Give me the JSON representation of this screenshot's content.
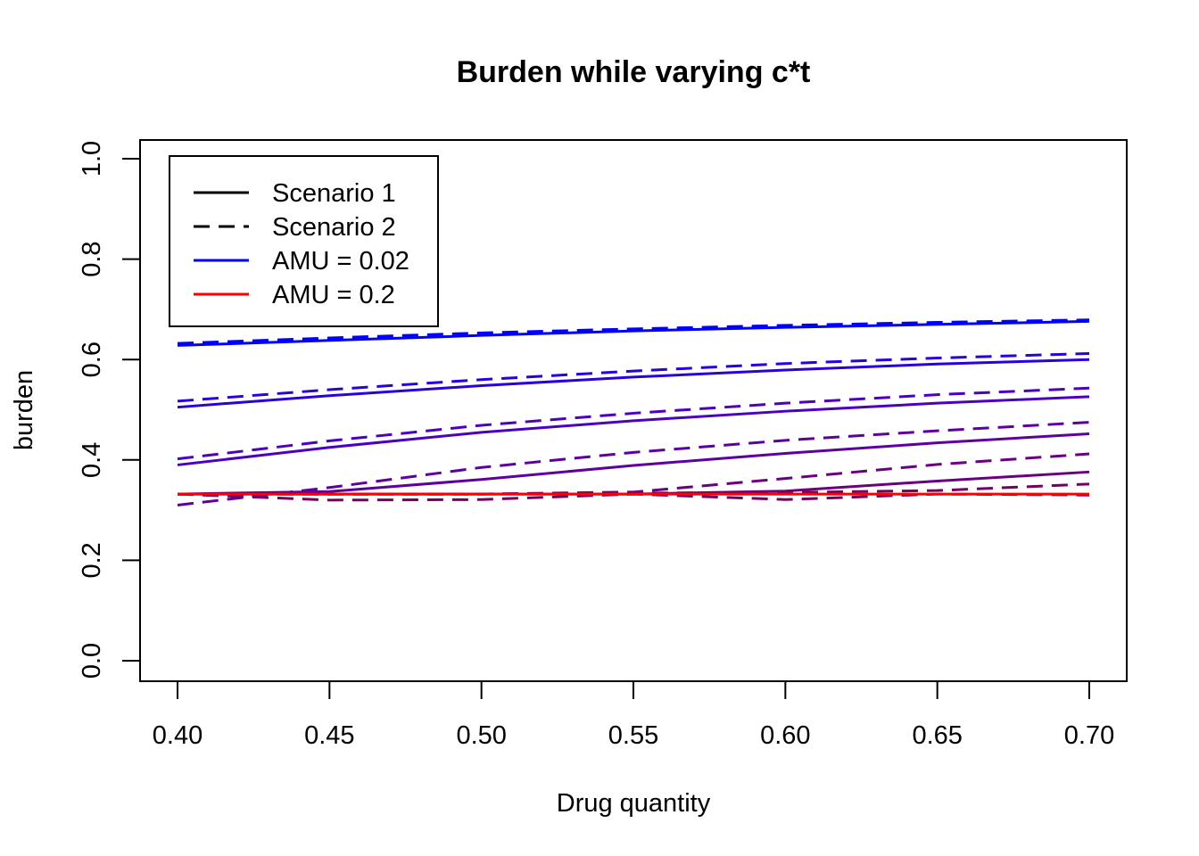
{
  "chart_data": {
    "type": "line",
    "title": "Burden while varying c*t",
    "xlabel": "Drug quantity",
    "ylabel": "burden",
    "xlim": [
      0.4,
      0.7
    ],
    "ylim": [
      0.0,
      1.0
    ],
    "x_ticks": [
      "0.40",
      "0.45",
      "0.50",
      "0.55",
      "0.60",
      "0.65",
      "0.70"
    ],
    "y_ticks": [
      "0.0",
      "0.2",
      "0.4",
      "0.6",
      "0.8",
      "1.0"
    ],
    "grid": false,
    "legend_position": "top-left",
    "legend": [
      {
        "label": "Scenario 1",
        "color": "#000000",
        "dash": "solid"
      },
      {
        "label": "Scenario 2",
        "color": "#000000",
        "dash": "dashed"
      },
      {
        "label": "AMU = 0.02",
        "color": "#0000ff",
        "dash": "solid"
      },
      {
        "label": "AMU = 0.2",
        "color": "#ff0000",
        "dash": "solid"
      }
    ],
    "x": [
      0.4,
      0.45,
      0.5,
      0.55,
      0.6,
      0.65,
      0.7
    ],
    "series": [
      {
        "color": "#0000ff",
        "dash": "solid",
        "values": [
          0.628,
          0.638,
          0.648,
          0.657,
          0.664,
          0.67,
          0.676
        ]
      },
      {
        "color": "#0000ff",
        "dash": "dashed",
        "values": [
          0.632,
          0.643,
          0.653,
          0.661,
          0.668,
          0.674,
          0.679
        ]
      },
      {
        "color": "#2a00e0",
        "dash": "solid",
        "values": [
          0.505,
          0.528,
          0.548,
          0.565,
          0.579,
          0.591,
          0.6
        ]
      },
      {
        "color": "#2a00e0",
        "dash": "dashed",
        "values": [
          0.517,
          0.54,
          0.56,
          0.577,
          0.592,
          0.603,
          0.612
        ]
      },
      {
        "color": "#4c00c0",
        "dash": "solid",
        "values": [
          0.39,
          0.425,
          0.455,
          0.478,
          0.497,
          0.513,
          0.526
        ]
      },
      {
        "color": "#4c00c0",
        "dash": "dashed",
        "values": [
          0.402,
          0.438,
          0.469,
          0.493,
          0.513,
          0.53,
          0.543
        ]
      },
      {
        "color": "#5e00a0",
        "dash": "solid",
        "values": [
          0.332,
          0.337,
          0.361,
          0.389,
          0.413,
          0.434,
          0.452
        ]
      },
      {
        "color": "#5e00a0",
        "dash": "dashed",
        "values": [
          0.31,
          0.345,
          0.385,
          0.415,
          0.439,
          0.458,
          0.475
        ]
      },
      {
        "color": "#6a0080",
        "dash": "solid",
        "values": [
          0.332,
          0.332,
          0.332,
          0.332,
          0.338,
          0.358,
          0.376
        ]
      },
      {
        "color": "#6a0080",
        "dash": "dashed",
        "values": [
          0.332,
          0.332,
          0.332,
          0.336,
          0.363,
          0.391,
          0.412
        ]
      },
      {
        "color": "#740060",
        "dash": "dashed",
        "values": [
          0.332,
          0.32,
          0.321,
          0.332,
          0.321,
          0.332,
          0.33
        ]
      },
      {
        "color": "#740060",
        "dash": "dashed",
        "values": [
          0.332,
          0.332,
          0.332,
          0.334,
          0.335,
          0.339,
          0.352
        ]
      },
      {
        "color": "#ff0000",
        "dash": "solid",
        "values": [
          0.332,
          0.332,
          0.332,
          0.332,
          0.332,
          0.332,
          0.332
        ]
      }
    ]
  }
}
